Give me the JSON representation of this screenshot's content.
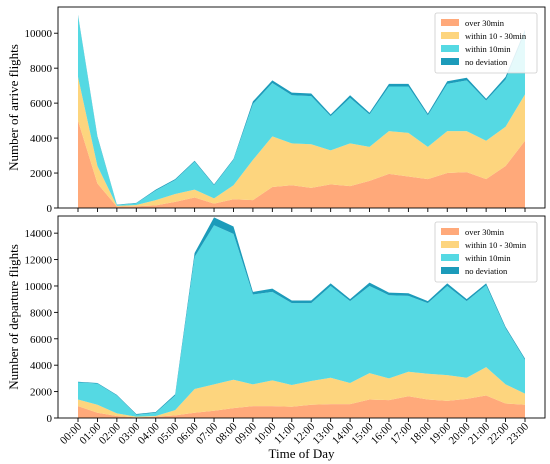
{
  "chart_data": [
    {
      "type": "area",
      "stacked": true,
      "ylabel": "Number of arrive flights",
      "xlabel": "",
      "ylim": [
        0,
        11500
      ],
      "yticks": [
        0,
        2000,
        4000,
        6000,
        8000,
        10000
      ],
      "grid": false,
      "legend_position": "top-right",
      "categories": [
        "00:00",
        "01:00",
        "02:00",
        "03:00",
        "04:00",
        "05:00",
        "06:00",
        "07:00",
        "08:00",
        "09:00",
        "10:00",
        "11:00",
        "12:00",
        "13:00",
        "14:00",
        "15:00",
        "16:00",
        "17:00",
        "18:00",
        "19:00",
        "20:00",
        "21:00",
        "22:00",
        "23:00"
      ],
      "series": [
        {
          "name": "over 30min",
          "color": "#FFA97A",
          "values": [
            5000,
            1400,
            80,
            100,
            150,
            350,
            600,
            250,
            500,
            450,
            1200,
            1300,
            1150,
            1350,
            1250,
            1550,
            1950,
            1800,
            1650,
            2000,
            2050,
            1650,
            2400,
            3850
          ]
        },
        {
          "name": "within 10 - 30min",
          "color": "#FDD57E",
          "values": [
            2500,
            1000,
            40,
            70,
            300,
            450,
            450,
            300,
            800,
            2300,
            2900,
            2400,
            2500,
            1950,
            2450,
            1950,
            2450,
            2500,
            1850,
            2400,
            2350,
            2200,
            2250,
            2650
          ]
        },
        {
          "name": "within 10min",
          "color": "#55D9E3",
          "values": [
            3500,
            1650,
            50,
            100,
            550,
            800,
            1600,
            750,
            1450,
            3200,
            3050,
            2750,
            2750,
            1950,
            2600,
            1850,
            2550,
            2650,
            1800,
            2700,
            2900,
            2300,
            2700,
            3550
          ]
        },
        {
          "name": "no deviation",
          "color": "#1C9BBA",
          "values": [
            50,
            50,
            20,
            20,
            50,
            50,
            50,
            50,
            50,
            150,
            150,
            150,
            150,
            100,
            150,
            100,
            150,
            150,
            100,
            150,
            150,
            100,
            150,
            150
          ]
        }
      ]
    },
    {
      "type": "area",
      "stacked": true,
      "ylabel": "Number of departure flights",
      "xlabel": "Time of Day",
      "ylim": [
        0,
        15300
      ],
      "yticks": [
        0,
        2000,
        4000,
        6000,
        8000,
        10000,
        12000,
        14000
      ],
      "grid": false,
      "legend_position": "top-right",
      "categories": [
        "00:00",
        "01:00",
        "02:00",
        "03:00",
        "04:00",
        "05:00",
        "06:00",
        "07:00",
        "08:00",
        "09:00",
        "10:00",
        "11:00",
        "12:00",
        "13:00",
        "14:00",
        "15:00",
        "16:00",
        "17:00",
        "18:00",
        "19:00",
        "20:00",
        "21:00",
        "22:00",
        "23:00"
      ],
      "series": [
        {
          "name": "over 30min",
          "color": "#FFA97A",
          "values": [
            900,
            400,
            150,
            50,
            100,
            200,
            400,
            550,
            750,
            900,
            900,
            850,
            1000,
            1050,
            1050,
            1400,
            1350,
            1650,
            1400,
            1300,
            1450,
            1700,
            1100,
            1000
          ]
        },
        {
          "name": "within 10 - 30min",
          "color": "#FDD57E",
          "values": [
            500,
            600,
            200,
            50,
            50,
            400,
            1800,
            2000,
            2150,
            1650,
            1950,
            1650,
            1800,
            2000,
            1600,
            2000,
            1650,
            1850,
            1950,
            1950,
            1600,
            2150,
            1450,
            850
          ]
        },
        {
          "name": "within 10min",
          "color": "#55D9E3",
          "values": [
            1300,
            1600,
            1350,
            150,
            250,
            1100,
            10000,
            12050,
            11050,
            6800,
            6700,
            6200,
            5900,
            6950,
            6200,
            6600,
            6300,
            5750,
            5350,
            6750,
            5800,
            6200,
            4250,
            2550
          ]
        },
        {
          "name": "no deviation",
          "color": "#1C9BBA",
          "values": [
            50,
            50,
            50,
            50,
            50,
            100,
            300,
            600,
            550,
            200,
            250,
            200,
            200,
            200,
            150,
            250,
            200,
            200,
            150,
            200,
            150,
            150,
            100,
            100
          ]
        }
      ]
    }
  ]
}
